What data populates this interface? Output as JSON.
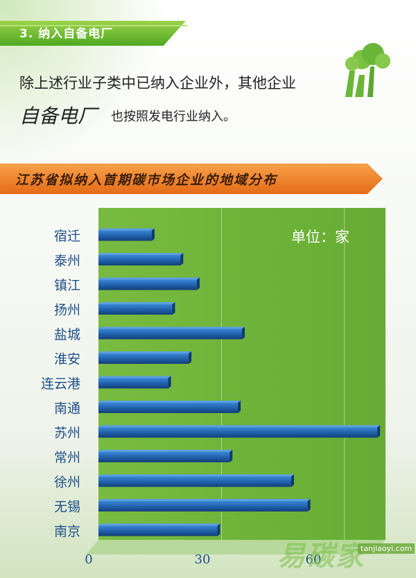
{
  "section": {
    "title": "3. 纳入自备电厂"
  },
  "intro": {
    "line1": "除上述行业子类中已纳入企业外，其他企业",
    "line2_em": "自备电厂",
    "line2_rest": "也按照发电行业纳入。"
  },
  "chart_title": "江苏省拟纳入首期碳市场企业的地域分布",
  "unit_label": "单位：家",
  "watermark": {
    "text": "易碳家",
    "url": "tanjiaoyi.com"
  },
  "colors": {
    "plot_bg": "#6fb43a",
    "bar": "#1f5fa8",
    "title_bar": "#f08a2e"
  },
  "icons": [
    "factory-tree-icon"
  ],
  "chart_data": {
    "type": "bar",
    "orientation": "horizontal",
    "title": "江苏省拟纳入首期碳市场企业的地域分布",
    "unit": "单位：家",
    "categories": [
      "宿迁",
      "泰州",
      "镇江",
      "扬州",
      "盐城",
      "淮安",
      "连云港",
      "南通",
      "苏州",
      "常州",
      "徐州",
      "无锡",
      "南京"
    ],
    "values": [
      13,
      20,
      24,
      18,
      35,
      22,
      17,
      34,
      68,
      32,
      47,
      51,
      29
    ],
    "xlim": [
      0,
      70
    ],
    "xticks": [
      "0",
      "30",
      "60"
    ],
    "grid": true
  }
}
